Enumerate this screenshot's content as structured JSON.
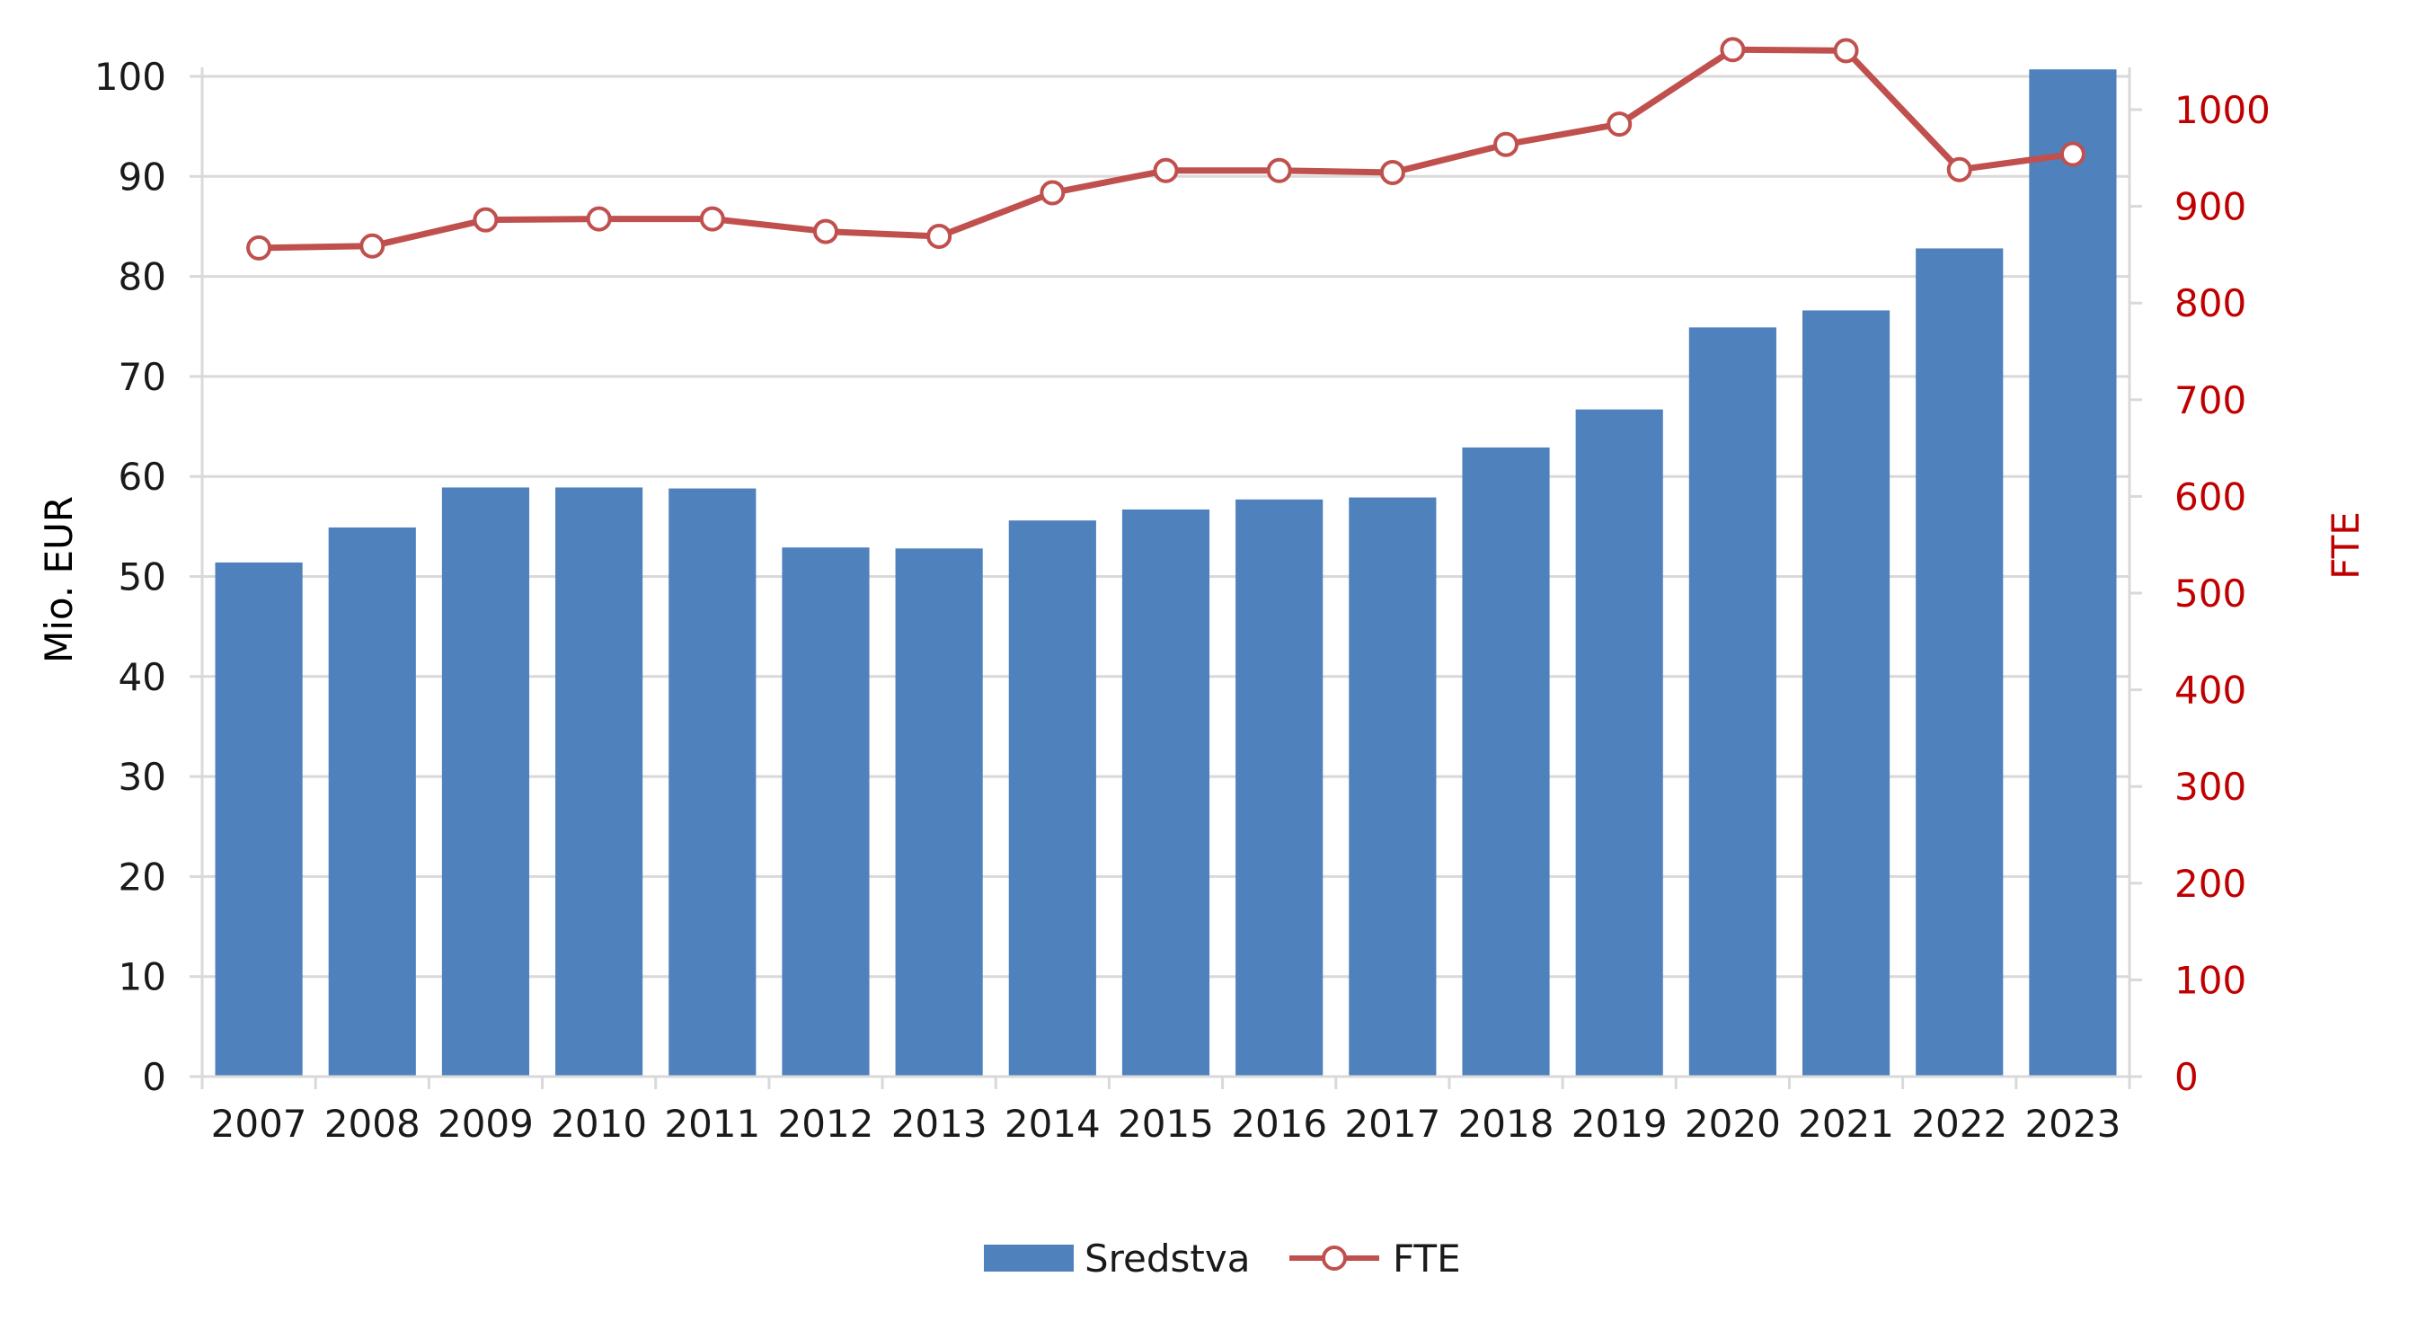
{
  "chart_data": {
    "type": "bar",
    "categories": [
      "2007",
      "2008",
      "2009",
      "2010",
      "2011",
      "2012",
      "2013",
      "2014",
      "2015",
      "2016",
      "2017",
      "2018",
      "2019",
      "2020",
      "2021",
      "2022",
      "2023"
    ],
    "series": [
      {
        "name": "Sredstva",
        "type": "bar",
        "axis": "left",
        "color": "#4f81bd",
        "values": [
          51.4,
          54.9,
          58.9,
          58.9,
          58.8,
          52.9,
          52.8,
          55.6,
          56.7,
          57.7,
          57.9,
          62.9,
          66.7,
          74.9,
          76.6,
          82.8,
          100.7
        ]
      },
      {
        "name": "FTE",
        "type": "line",
        "axis": "right",
        "color": "#c0504d",
        "values": [
          857,
          859,
          886,
          887,
          887,
          874,
          869,
          914,
          937,
          937,
          935,
          964,
          985,
          1062,
          1061,
          938,
          954
        ]
      }
    ],
    "ylabel": "Mio. EUR",
    "y2label": "FTE",
    "ylim": [
      0,
      100
    ],
    "yticks": [
      "0",
      "10",
      "20",
      "30",
      "40",
      "50",
      "60",
      "70",
      "80",
      "90",
      "100"
    ],
    "y2lim": [
      0,
      1000
    ],
    "y2ticks": [
      "0",
      "100",
      "200",
      "300",
      "400",
      "500",
      "600",
      "700",
      "800",
      "900",
      "1000"
    ],
    "grid": true,
    "legend_position": "bottom"
  }
}
